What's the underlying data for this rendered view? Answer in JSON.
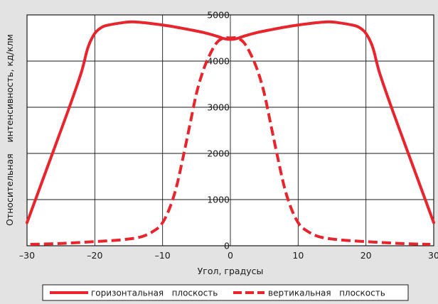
{
  "chart_data": {
    "type": "line",
    "title": "",
    "xlabel": "Угол, градусы",
    "ylabel": "Относительная    интенсивность, кд/клм",
    "xlim": [
      -30,
      30
    ],
    "ylim": [
      0,
      5000
    ],
    "x_ticks": [
      -30,
      -20,
      -10,
      0,
      10,
      20,
      30
    ],
    "y_ticks": [
      0,
      1000,
      2000,
      3000,
      4000,
      5000
    ],
    "x_tick_labels": [
      "–30",
      "–20",
      "–10",
      "0",
      "10",
      "20",
      "30"
    ],
    "y_tick_labels": [
      "0",
      "1000",
      "2000",
      "3000",
      "4000",
      "5000"
    ],
    "grid": true,
    "legend_position": "bottom",
    "series": [
      {
        "name": "горизонтальная   плоскость",
        "style": "solid",
        "color": "#e8242d",
        "x": [
          -30,
          -27,
          -24,
          -22,
          -21,
          -20,
          -19,
          -18,
          -16,
          -14.5,
          -12,
          -9,
          -6,
          -4,
          -2,
          -1,
          0,
          1,
          2,
          4,
          6,
          9,
          12,
          14.5,
          16,
          18,
          19,
          20,
          21,
          22,
          24,
          27,
          30
        ],
        "y": [
          500,
          1700,
          2900,
          3750,
          4300,
          4600,
          4730,
          4780,
          4830,
          4850,
          4820,
          4760,
          4680,
          4620,
          4540,
          4490,
          4470,
          4490,
          4540,
          4620,
          4680,
          4760,
          4820,
          4850,
          4830,
          4780,
          4730,
          4600,
          4300,
          3750,
          2900,
          1700,
          500
        ]
      },
      {
        "name": "вертикальная   плоскость",
        "style": "dashed",
        "color": "#e8242d",
        "x": [
          -29.5,
          -25,
          -20,
          -16,
          -13,
          -11,
          -10,
          -9,
          -8,
          -7,
          -6,
          -5,
          -4,
          -3,
          -2,
          -1,
          0,
          1,
          2,
          3,
          4,
          5,
          6,
          7,
          8,
          9,
          10,
          11,
          13,
          16,
          20,
          25,
          29.5
        ],
        "y": [
          30,
          50,
          90,
          130,
          200,
          350,
          500,
          800,
          1250,
          1900,
          2600,
          3300,
          3800,
          4150,
          4400,
          4500,
          4500,
          4500,
          4400,
          4150,
          3800,
          3300,
          2600,
          1900,
          1250,
          800,
          500,
          350,
          200,
          130,
          90,
          50,
          30
        ]
      }
    ]
  }
}
